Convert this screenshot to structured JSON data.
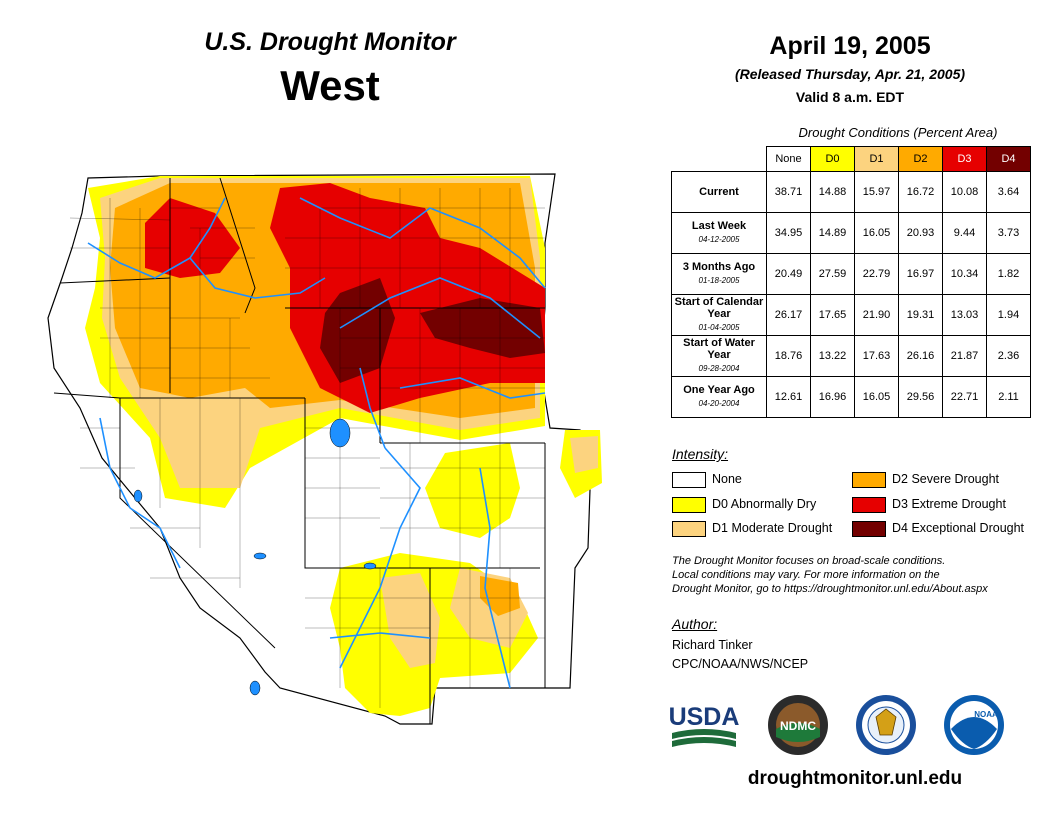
{
  "header": {
    "title": "U.S. Drought Monitor",
    "region": "West",
    "date": "April 19, 2005",
    "released": "(Released Thursday, Apr. 21, 2005)",
    "valid": "Valid 8 a.m. EDT"
  },
  "table": {
    "caption": "Drought Conditions (Percent Area)",
    "columns": [
      "None",
      "D0",
      "D1",
      "D2",
      "D3",
      "D4"
    ],
    "column_colors": [
      "#ffffff",
      "#ffff00",
      "#fcd37f",
      "#ffaa00",
      "#e60000",
      "#730000"
    ],
    "rows": [
      {
        "label": "Current",
        "date": "",
        "values": [
          "38.71",
          "14.88",
          "15.97",
          "16.72",
          "10.08",
          "3.64"
        ]
      },
      {
        "label": "Last Week",
        "date": "04-12-2005",
        "values": [
          "34.95",
          "14.89",
          "16.05",
          "20.93",
          "9.44",
          "3.73"
        ]
      },
      {
        "label": "3 Months Ago",
        "date": "01-18-2005",
        "values": [
          "20.49",
          "27.59",
          "22.79",
          "16.97",
          "10.34",
          "1.82"
        ]
      },
      {
        "label": "Start of Calendar Year",
        "date": "01-04-2005",
        "values": [
          "26.17",
          "17.65",
          "21.90",
          "19.31",
          "13.03",
          "1.94"
        ]
      },
      {
        "label": "Start of Water Year",
        "date": "09-28-2004",
        "values": [
          "18.76",
          "13.22",
          "17.63",
          "26.16",
          "21.87",
          "2.36"
        ]
      },
      {
        "label": "One Year Ago",
        "date": "04-20-2004",
        "values": [
          "12.61",
          "16.96",
          "16.05",
          "29.56",
          "22.71",
          "2.11"
        ]
      }
    ]
  },
  "legend": {
    "title": "Intensity:",
    "items": [
      {
        "label": "None",
        "color": "#ffffff"
      },
      {
        "label": "D0 Abnormally Dry",
        "color": "#ffff00"
      },
      {
        "label": "D1 Moderate Drought",
        "color": "#fcd37f"
      },
      {
        "label": "D2 Severe Drought",
        "color": "#ffaa00"
      },
      {
        "label": "D3 Extreme Drought",
        "color": "#e60000"
      },
      {
        "label": "D4 Exceptional Drought",
        "color": "#730000"
      }
    ]
  },
  "note": {
    "line1": "The Drought Monitor focuses on broad-scale conditions.",
    "line2": "Local conditions may vary. For more information on the",
    "line3": "Drought Monitor, go to https://droughtmonitor.unl.edu/About.aspx"
  },
  "author": {
    "title": "Author:",
    "name": "Richard Tinker",
    "org": "CPC/NOAA/NWS/NCEP"
  },
  "logos": {
    "usda": "USDA",
    "ndmc": "NDMC",
    "noaa": "NOAA"
  },
  "website": "droughtmonitor.unl.edu",
  "map": {
    "water_color": "#1e90ff",
    "border_color": "#000000"
  }
}
